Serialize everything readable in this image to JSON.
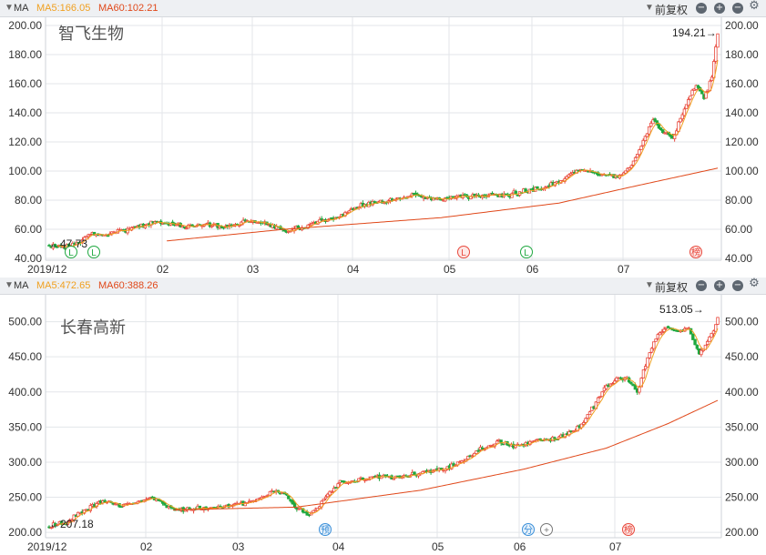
{
  "header": {
    "ma_label": "MA",
    "fq_label": "前复权"
  },
  "x_ticks": [
    "2019/12",
    "02",
    "03",
    "04",
    "05",
    "06",
    "07"
  ],
  "charts": [
    {
      "ma5_label": "MA5:166.05",
      "ma60_label": "MA60:102.21",
      "name": "智飞生物",
      "high_label": "194.21→",
      "low_label": "←47.73",
      "y_ticks": [
        "200.00",
        "180.00",
        "160.00",
        "140.00",
        "120.00",
        "100.00",
        "80.00",
        "60.00",
        "40.00"
      ],
      "markers": [
        "L",
        "L",
        "L",
        "L",
        "榜"
      ]
    },
    {
      "ma5_label": "MA5:472.65",
      "ma60_label": "MA60:388.26",
      "name": "长春高新",
      "high_label": "513.05→",
      "low_label": "←207.18",
      "y_ticks": [
        "500.00",
        "450.00",
        "400.00",
        "350.00",
        "300.00",
        "250.00",
        "200.00"
      ],
      "markers": [
        "预",
        "分",
        "+",
        "榜"
      ]
    }
  ],
  "chart_data": [
    {
      "type": "candlestick",
      "title": "智飞生物",
      "x_months": [
        "2019/12",
        "02",
        "03",
        "04",
        "05",
        "06",
        "07"
      ],
      "ylim": [
        40,
        200
      ],
      "close_anchors": [
        [
          0,
          48.5
        ],
        [
          10,
          48.5
        ],
        [
          14,
          50
        ],
        [
          20,
          56
        ],
        [
          28,
          57
        ],
        [
          35,
          58
        ],
        [
          45,
          62
        ],
        [
          55,
          65
        ],
        [
          70,
          62
        ],
        [
          80,
          63
        ],
        [
          90,
          62
        ],
        [
          100,
          65
        ],
        [
          108,
          65
        ],
        [
          115,
          61
        ],
        [
          122,
          59
        ],
        [
          130,
          62
        ],
        [
          140,
          66
        ],
        [
          150,
          70
        ],
        [
          157,
          76
        ],
        [
          165,
          78
        ],
        [
          175,
          80
        ],
        [
          185,
          83
        ],
        [
          195,
          81
        ],
        [
          205,
          82
        ],
        [
          215,
          82
        ],
        [
          225,
          83
        ],
        [
          235,
          84
        ],
        [
          245,
          87
        ],
        [
          255,
          90
        ],
        [
          262,
          94
        ],
        [
          270,
          101
        ],
        [
          275,
          100
        ],
        [
          283,
          97
        ],
        [
          290,
          96
        ],
        [
          297,
          103
        ],
        [
          303,
          120
        ],
        [
          308,
          135
        ],
        [
          313,
          127
        ],
        [
          318,
          123
        ],
        [
          325,
          145
        ],
        [
          330,
          160
        ],
        [
          334,
          150
        ],
        [
          338,
          164
        ],
        [
          341,
          194
        ]
      ],
      "ma60_anchors": [
        [
          60,
          52
        ],
        [
          120,
          60
        ],
        [
          200,
          68
        ],
        [
          260,
          78
        ],
        [
          300,
          90
        ],
        [
          341,
          102
        ]
      ],
      "series": [
        {
          "name": "MA5",
          "value": 166.05
        },
        {
          "name": "MA60",
          "value": 102.21
        }
      ],
      "annotations": [
        {
          "text": "194.21",
          "kind": "period high"
        },
        {
          "text": "47.73",
          "kind": "period low"
        }
      ]
    },
    {
      "type": "candlestick",
      "title": "长春高新",
      "x_months": [
        "2019/12",
        "02",
        "03",
        "04",
        "05",
        "06",
        "07"
      ],
      "ylim": [
        195,
        515
      ],
      "close_anchors": [
        [
          0,
          209
        ],
        [
          8,
          213
        ],
        [
          15,
          228
        ],
        [
          25,
          243
        ],
        [
          35,
          238
        ],
        [
          45,
          244
        ],
        [
          50,
          250
        ],
        [
          55,
          240
        ],
        [
          60,
          232
        ],
        [
          70,
          234
        ],
        [
          80,
          236
        ],
        [
          90,
          238
        ],
        [
          100,
          245
        ],
        [
          110,
          260
        ],
        [
          115,
          252
        ],
        [
          120,
          236
        ],
        [
          126,
          224
        ],
        [
          132,
          242
        ],
        [
          140,
          270
        ],
        [
          150,
          275
        ],
        [
          160,
          280
        ],
        [
          170,
          278
        ],
        [
          180,
          285
        ],
        [
          190,
          290
        ],
        [
          200,
          300
        ],
        [
          210,
          320
        ],
        [
          218,
          330
        ],
        [
          226,
          323
        ],
        [
          235,
          330
        ],
        [
          245,
          333
        ],
        [
          255,
          345
        ],
        [
          262,
          370
        ],
        [
          268,
          400
        ],
        [
          275,
          420
        ],
        [
          280,
          418
        ],
        [
          285,
          400
        ],
        [
          290,
          450
        ],
        [
          295,
          480
        ],
        [
          300,
          492
        ],
        [
          305,
          485
        ],
        [
          310,
          490
        ],
        [
          315,
          455
        ],
        [
          318,
          465
        ],
        [
          322,
          490
        ],
        [
          324,
          505
        ]
      ],
      "ma60_anchors": [
        [
          60,
          232
        ],
        [
          120,
          236
        ],
        [
          180,
          260
        ],
        [
          230,
          290
        ],
        [
          270,
          320
        ],
        [
          300,
          355
        ],
        [
          324,
          388
        ]
      ],
      "series": [
        {
          "name": "MA5",
          "value": 472.65
        },
        {
          "name": "MA60",
          "value": 388.26
        }
      ],
      "annotations": [
        {
          "text": "513.05",
          "kind": "period high"
        },
        {
          "text": "207.18",
          "kind": "period low"
        }
      ]
    }
  ],
  "colors": {
    "up": "#e8483c",
    "down": "#1fa83f",
    "ma5": "#f0a020",
    "ma60": "#e0481a",
    "grid": "#e3e6ea"
  },
  "icons": [
    "chevron-down-icon",
    "zoom-out-icon",
    "zoom-in-icon",
    "minus-icon",
    "gear-icon"
  ]
}
